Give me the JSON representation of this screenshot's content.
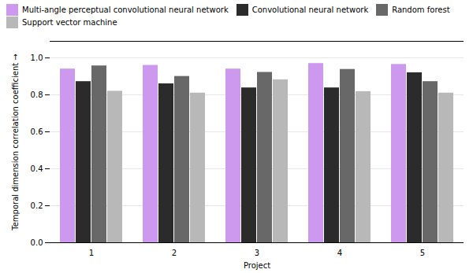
{
  "chart_data": {
    "type": "bar",
    "categories": [
      "1",
      "2",
      "3",
      "4",
      "5"
    ],
    "series": [
      {
        "name": "Multi-angle perceptual convolutional neural network",
        "color": "#cc99ee",
        "values": [
          0.94,
          0.96,
          0.94,
          0.97,
          0.965
        ]
      },
      {
        "name": "Convolutional neural network",
        "color": "#2b2b2b",
        "values": [
          0.872,
          0.86,
          0.838,
          0.838,
          0.92
        ]
      },
      {
        "name": "Random forest",
        "color": "#686868",
        "values": [
          0.957,
          0.9,
          0.922,
          0.938,
          0.872
        ]
      },
      {
        "name": "Support vector machine",
        "color": "#b8b8b8",
        "values": [
          0.82,
          0.81,
          0.882,
          0.818,
          0.81
        ]
      }
    ],
    "xlabel": "Project",
    "ylabel": "Temporal dimension correlation coefficient",
    "ylim": [
      0.0,
      1.09
    ],
    "yticks": [
      {
        "value": 0.0,
        "label": "0.0"
      },
      0.2,
      0.4,
      0.6,
      0.8,
      {
        "value": 1.0,
        "label": "1.0"
      }
    ],
    "grid": true,
    "legend": "upper left"
  }
}
